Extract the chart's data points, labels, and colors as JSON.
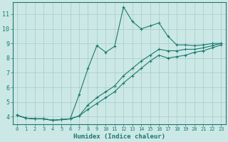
{
  "xlabel": "Humidex (Indice chaleur)",
  "bg_color": "#cce8e6",
  "line_color": "#1a7a6e",
  "grid_color": "#aacfcc",
  "xlim": [
    -0.5,
    23.5
  ],
  "ylim": [
    3.5,
    11.8
  ],
  "yticks": [
    4,
    5,
    6,
    7,
    8,
    9,
    10,
    11
  ],
  "xticks": [
    0,
    1,
    2,
    3,
    4,
    5,
    6,
    7,
    8,
    9,
    10,
    11,
    12,
    13,
    14,
    15,
    16,
    17,
    18,
    19,
    20,
    21,
    22,
    23
  ],
  "lines": [
    {
      "x": [
        0,
        1,
        2,
        3,
        4,
        5,
        6,
        7,
        8,
        9,
        10,
        11,
        12,
        13,
        14,
        15,
        16,
        17,
        18,
        19,
        20,
        21,
        22,
        23
      ],
      "y": [
        4.1,
        3.9,
        3.85,
        3.85,
        3.75,
        3.8,
        3.85,
        5.5,
        7.3,
        8.85,
        8.4,
        8.8,
        11.5,
        10.5,
        10.0,
        10.2,
        10.4,
        9.5,
        8.9,
        8.9,
        8.85,
        8.9,
        9.0,
        9.0
      ]
    },
    {
      "x": [
        0,
        1,
        2,
        3,
        4,
        5,
        6,
        7,
        8,
        9,
        10,
        11,
        12,
        13,
        14,
        15,
        16,
        17,
        18,
        19,
        20,
        21,
        22,
        23
      ],
      "y": [
        4.1,
        3.9,
        3.85,
        3.85,
        3.75,
        3.8,
        3.85,
        4.05,
        4.8,
        5.3,
        5.7,
        6.1,
        6.8,
        7.3,
        7.8,
        8.2,
        8.6,
        8.5,
        8.5,
        8.6,
        8.6,
        8.7,
        8.85,
        9.0
      ]
    },
    {
      "x": [
        0,
        1,
        2,
        3,
        4,
        5,
        6,
        7,
        8,
        9,
        10,
        11,
        12,
        13,
        14,
        15,
        16,
        17,
        18,
        19,
        20,
        21,
        22,
        23
      ],
      "y": [
        4.1,
        3.9,
        3.85,
        3.85,
        3.75,
        3.8,
        3.85,
        4.05,
        4.5,
        4.9,
        5.3,
        5.7,
        6.3,
        6.8,
        7.3,
        7.8,
        8.2,
        8.0,
        8.1,
        8.2,
        8.4,
        8.5,
        8.7,
        8.9
      ]
    }
  ]
}
